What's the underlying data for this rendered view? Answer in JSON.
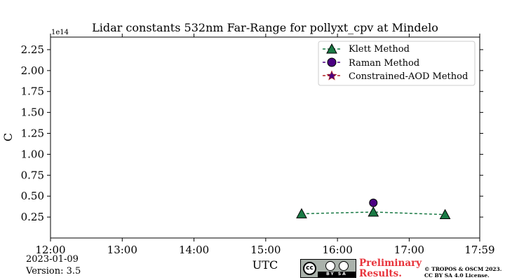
{
  "chart_data": {
    "type": "line",
    "title": "Lidar constants 532nm Far-Range for pollyxt_cpv at Mindelo",
    "xlabel": "UTC",
    "ylabel": "C",
    "y_offset_label": "1e14",
    "ylim": [
      0,
      2.4
    ],
    "xlim": [
      "12:00",
      "17:59"
    ],
    "xticks": [
      "12:00",
      "13:00",
      "14:00",
      "15:00",
      "16:00",
      "17:00",
      "17:59"
    ],
    "yticks": [
      0.25,
      0.5,
      0.75,
      1.0,
      1.25,
      1.5,
      1.75,
      2.0,
      2.25
    ],
    "ytick_labels": [
      "0.25",
      "0.50",
      "0.75",
      "1.00",
      "1.25",
      "1.50",
      "1.75",
      "2.00",
      "2.25"
    ],
    "grid": false,
    "legend_position": "top-right",
    "series": [
      {
        "name": "Klett Method",
        "color": "#1a7a45",
        "marker": "triangle",
        "line": "dashed",
        "x": [
          "15:30",
          "16:30",
          "17:30"
        ],
        "y": [
          0.29,
          0.31,
          0.28
        ]
      },
      {
        "name": "Raman Method",
        "color": "#4b0082",
        "marker": "circle",
        "line": "dashed",
        "x": [
          "16:30"
        ],
        "y": [
          0.42
        ]
      },
      {
        "name": "Constrained-AOD Method",
        "color": "#b22222",
        "marker": "star",
        "line": "dashed",
        "x": [],
        "y": []
      }
    ]
  },
  "footer": {
    "date": "2023-01-09",
    "version": "Version: 3.5",
    "preliminary_line1": "Preliminary",
    "preliminary_line2": "Results.",
    "copyright_line1": "© TROPOS & OSCM 2023.",
    "copyright_line2": "CC BY SA 4.0 License.",
    "license_badge": {
      "circle": "cc",
      "bar": "BY SA",
      "icons": [
        "person-icon",
        "share-alike-icon"
      ]
    }
  }
}
